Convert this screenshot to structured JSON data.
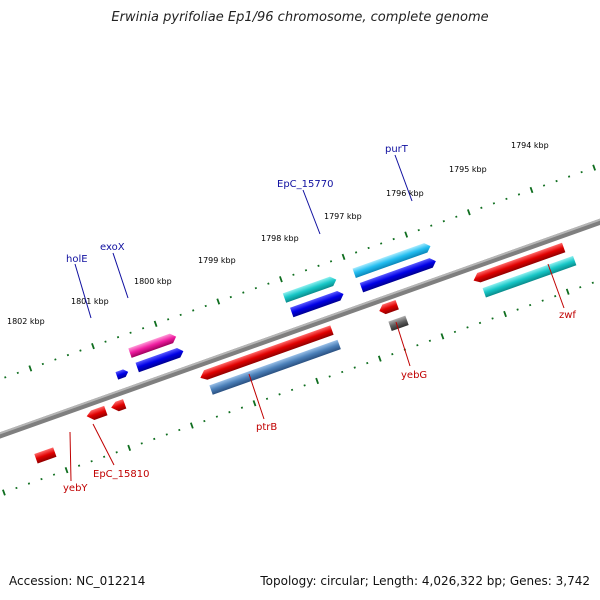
{
  "title": "Erwinia pyrifoliae Ep1/96 chromosome, complete genome",
  "footer": {
    "accession": "Accession: NC_012214",
    "topology": "Topology: circular; Length: 4,026,322 bp; Genes: 3,742"
  },
  "colors": {
    "backbone": "#7a7a7a",
    "tick": "#0f6e1f",
    "label_fwd": "#1010a0",
    "label_rev": "#c00000",
    "ruler_text": "#000000"
  },
  "ruler_labels": [
    "1802 kbp",
    "1801 kbp",
    "1800 kbp",
    "1799 kbp",
    "1798 kbp",
    "1797 kbp",
    "1796 kbp",
    "1795 kbp",
    "1794 kbp"
  ],
  "gene_labels_forward": [
    "holE",
    "exoX",
    "EpC_15770",
    "purT"
  ],
  "gene_labels_reverse": [
    "yebY",
    "EpC_15810",
    "ptrB",
    "yebG",
    "zwf"
  ]
}
